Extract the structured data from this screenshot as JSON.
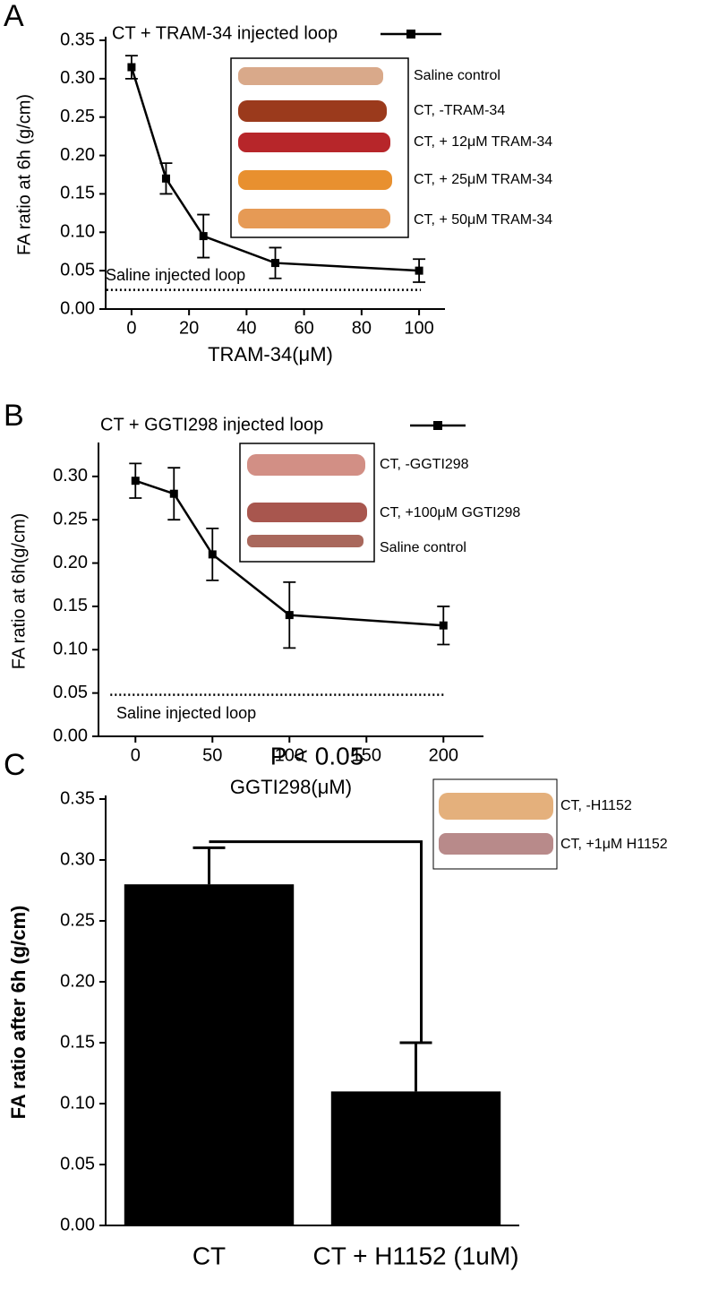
{
  "chart_data": [
    {
      "type": "line",
      "label": "A",
      "x": [
        0,
        12,
        25,
        50,
        100
      ],
      "series": [
        {
          "name": "CT + TRAM-34 injected loop",
          "color": "#000000",
          "values": [
            0.315,
            0.17,
            0.095,
            0.06,
            0.05
          ],
          "errors": [
            0.015,
            0.02,
            0.028,
            0.02,
            0.015
          ]
        }
      ],
      "xlim": [
        -9,
        109
      ],
      "xticks": [
        0,
        20,
        40,
        60,
        80,
        100
      ],
      "ylim": [
        0,
        0.35
      ],
      "yticks": [
        {
          "value": 0,
          "label": "0.00"
        },
        0.05,
        {
          "value": 0.1,
          "label": "0.10"
        },
        0.15,
        {
          "value": 0.2,
          "label": "0.20"
        },
        0.25,
        {
          "value": 0.3,
          "label": "0.30"
        },
        0.35
      ],
      "x_label": "TRAM-34(μM)",
      "y_label": "FA ratio at 6h (g/cm)",
      "reference": {
        "label": "Saline injected loop",
        "value": 0.025
      },
      "inset_labels": [
        "Saline control",
        "CT, -TRAM-34",
        "CT, + 12μM TRAM-34",
        "CT, + 25μM TRAM-34",
        "CT, + 50μM TRAM-34"
      ]
    },
    {
      "type": "line",
      "label": "B",
      "x": [
        0,
        25,
        50,
        100,
        200
      ],
      "series": [
        {
          "name": "CT + GGTI298 injected loop",
          "color": "#000000",
          "values": [
            0.295,
            0.28,
            0.21,
            0.14,
            0.128
          ],
          "errors": [
            0.02,
            0.03,
            0.03,
            0.038,
            0.022
          ]
        }
      ],
      "xlim": [
        -24,
        226
      ],
      "xticks": [
        0,
        50,
        100,
        150,
        200
      ],
      "ylim": [
        0,
        0.335
      ],
      "yticks": [
        {
          "value": 0,
          "label": "0.00"
        },
        0.05,
        {
          "value": 0.1,
          "label": "0.10"
        },
        0.15,
        {
          "value": 0.2,
          "label": "0.20"
        },
        0.25,
        {
          "value": 0.3,
          "label": "0.30"
        }
      ],
      "x_label": "GGTI298(μM)",
      "y_label": "FA ratio at 6h(g/cm)",
      "reference": {
        "label": "Saline injected loop",
        "value": 0.048
      },
      "inset_labels": [
        "CT, -GGTI298",
        "CT, +100μM GGTI298",
        "Saline control"
      ]
    },
    {
      "type": "bar",
      "label": "C",
      "categories": [
        "CT",
        "CT + H1152 (1uM)"
      ],
      "values": [
        0.28,
        0.11
      ],
      "errors": [
        0.03,
        0.04
      ],
      "color": "#000000",
      "ylim": [
        0,
        0.35
      ],
      "yticks": [
        {
          "value": 0,
          "label": "0.00"
        },
        0.05,
        {
          "value": 0.1,
          "label": "0.10"
        },
        0.15,
        {
          "value": 0.2,
          "label": "0.20"
        },
        0.25,
        {
          "value": 0.3,
          "label": "0.30"
        },
        0.35
      ],
      "y_label": "FA ratio after 6h (g/cm)",
      "annotation": "P < 0.05",
      "inset_labels": [
        "CT, -H1152",
        "CT, +1μM H1152"
      ]
    }
  ]
}
